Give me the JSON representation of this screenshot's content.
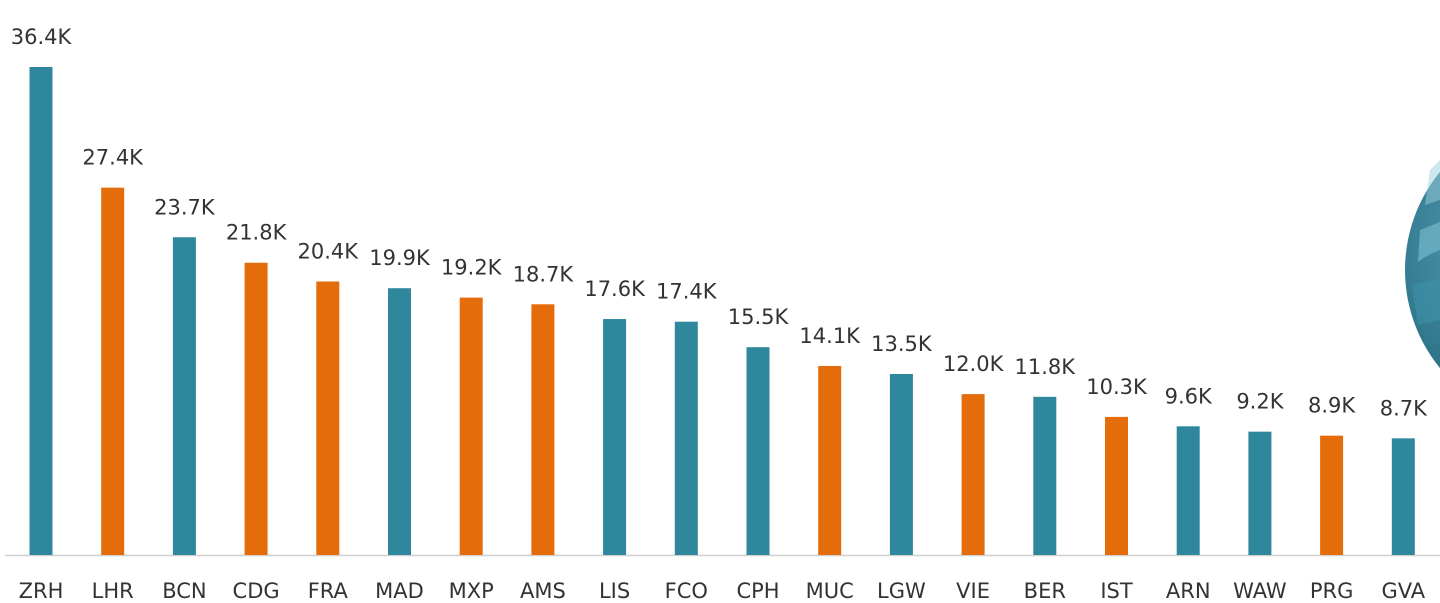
{
  "chart_data": {
    "type": "bar",
    "categories": [
      "ZRH",
      "LHR",
      "BCN",
      "CDG",
      "FRA",
      "MAD",
      "MXP",
      "AMS",
      "LIS",
      "FCO",
      "CPH",
      "MUC",
      "LGW",
      "VIE",
      "BER",
      "IST",
      "ARN",
      "WAW",
      "PRG",
      "GVA"
    ],
    "values": [
      36400,
      27400,
      23700,
      21800,
      20400,
      19900,
      19200,
      18700,
      17600,
      17400,
      15500,
      14100,
      13500,
      12000,
      11800,
      10300,
      9600,
      9200,
      8900,
      8700
    ],
    "value_labels": [
      "36.4K",
      "27.4K",
      "23.7K",
      "21.8K",
      "20.4K",
      "19.9K",
      "19.2K",
      "18.7K",
      "17.6K",
      "17.4K",
      "15.5K",
      "14.1K",
      "13.5K",
      "12.0K",
      "11.8K",
      "10.3K",
      "9.6K",
      "9.2K",
      "8.9K",
      "8.7K"
    ],
    "colors": [
      "#2e879d",
      "#e46c0a",
      "#2e879d",
      "#e46c0a",
      "#e46c0a",
      "#2e879d",
      "#e46c0a",
      "#e46c0a",
      "#2e879d",
      "#2e879d",
      "#2e879d",
      "#e46c0a",
      "#2e879d",
      "#e46c0a",
      "#2e879d",
      "#e46c0a",
      "#2e879d",
      "#2e879d",
      "#e46c0a",
      "#2e879d"
    ]
  }
}
